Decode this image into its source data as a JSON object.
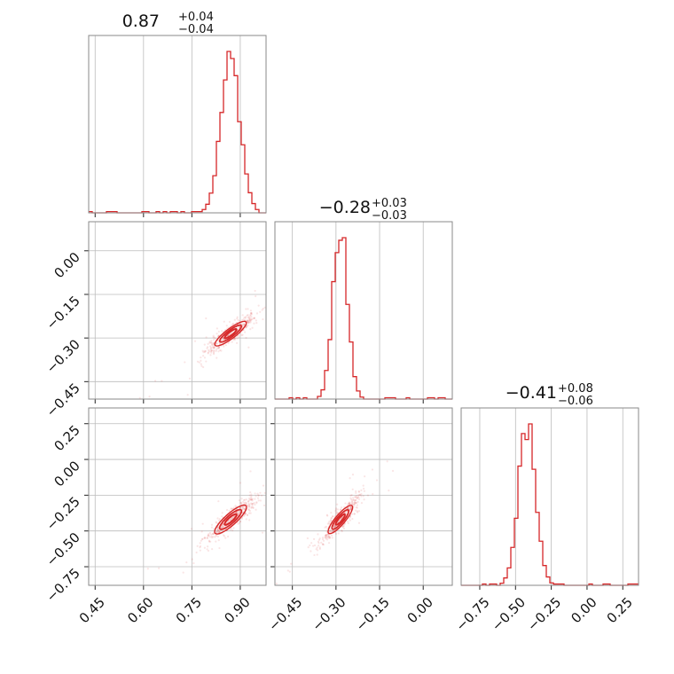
{
  "chart_data": {
    "type": "corner",
    "color": "#d62728",
    "parameters": [
      {
        "median": "0.87",
        "plus": "+0.04",
        "minus": "−0.04",
        "range": [
          0.43,
          0.98
        ],
        "ticks": [
          0.45,
          0.6,
          0.75,
          0.9
        ],
        "tick_labels": [
          "0.45",
          "0.60",
          "0.75",
          "0.90"
        ],
        "hist_center": 0.87,
        "hist_sigma": 0.03
      },
      {
        "median": "−0.28",
        "plus": "+0.03",
        "minus": "−0.03",
        "range": [
          -0.51,
          0.1
        ],
        "ticks": [
          -0.45,
          -0.3,
          -0.15,
          0.0
        ],
        "tick_labels": [
          "−0.45",
          "−0.30",
          "−0.15",
          "0.00"
        ],
        "hist_center": -0.285,
        "hist_sigma": 0.025
      },
      {
        "median": "−0.41",
        "plus": "+0.08",
        "minus": "−0.06",
        "range": [
          -0.88,
          0.36
        ],
        "ticks": [
          -0.75,
          -0.5,
          -0.25,
          0.0,
          0.25
        ],
        "tick_labels": [
          "−0.75",
          "−0.50",
          "−0.25",
          "0.00",
          "0.25"
        ],
        "hist_center": -0.42,
        "hist_sigma": 0.06
      }
    ],
    "grid": true
  }
}
